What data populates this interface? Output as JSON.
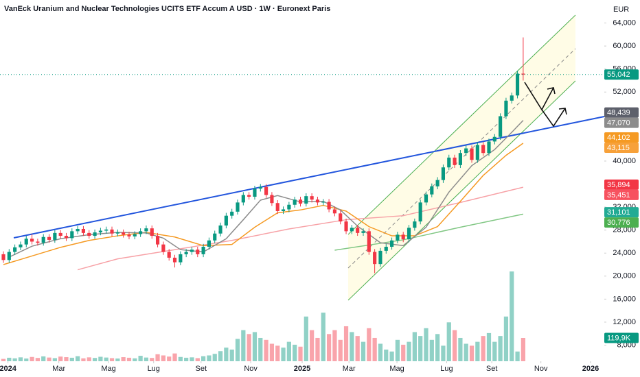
{
  "chart_data": {
    "type": "candlestick",
    "title": "VanEck Uranium and Nuclear Technologies UCITS ETF Accum A USD · 1W · Euronext Paris",
    "currency": "EUR",
    "up_color": "#089981",
    "down_color": "#f23645",
    "xlim": [
      -0.6,
      105.2
    ],
    "xticks": [
      {
        "value": 0.8,
        "label": "2024"
      },
      {
        "value": 9.7,
        "label": "Mar"
      },
      {
        "value": 18.4,
        "label": "Mag"
      },
      {
        "value": 26.3,
        "label": "Lug"
      },
      {
        "value": 34.6,
        "label": "Set"
      },
      {
        "value": 43.3,
        "label": "Nov"
      },
      {
        "value": 52.3,
        "label": "2025"
      },
      {
        "value": 60.5,
        "label": "Mar"
      },
      {
        "value": 68.9,
        "label": "Mag"
      },
      {
        "value": 77.6,
        "label": "Lug"
      },
      {
        "value": 85.5,
        "label": "Set"
      },
      {
        "value": 94.1,
        "label": "Nov"
      },
      {
        "value": 102.8,
        "label": "2026"
      }
    ],
    "ylim": [
      5200,
      68000
    ],
    "yticks": [
      {
        "value": 64000,
        "label": "64,000"
      },
      {
        "value": 60000,
        "label": "60,000"
      },
      {
        "value": 56000,
        "label": "56,000"
      },
      {
        "value": 52000,
        "label": "52,000"
      },
      {
        "value": 40000,
        "label": "40,000"
      },
      {
        "value": 32000,
        "label": "32,000"
      },
      {
        "value": 28000,
        "label": "28,000"
      },
      {
        "value": 24000,
        "label": "24,000"
      },
      {
        "value": 20000,
        "label": "20,000"
      },
      {
        "value": 16000,
        "label": "16,000"
      },
      {
        "value": 12000,
        "label": "12,000"
      },
      {
        "value": 8000,
        "label": "8,000"
      }
    ],
    "open": [
      23800,
      22800,
      24200,
      25000,
      25500,
      26500,
      26000,
      25800,
      26800,
      26300,
      27500,
      27000,
      26600,
      27800,
      28200,
      27500,
      27000,
      27600,
      27900,
      28100,
      27400,
      27600,
      27200,
      26900,
      27300,
      27800,
      28300,
      27000,
      25500,
      24200,
      23200,
      22400,
      23800,
      24200,
      24600,
      23800,
      25100,
      26200,
      27400,
      28800,
      30500,
      31200,
      32800,
      34100,
      33800,
      35200,
      35500,
      34100,
      32700,
      31300,
      31600,
      32400,
      33300,
      32600,
      33900,
      33300,
      32800,
      32900,
      31600,
      30900,
      29500,
      27800,
      28400,
      27500,
      27800,
      24200,
      22100,
      24400,
      25100,
      26200,
      27200,
      26400,
      28400,
      29500,
      32800,
      34200,
      35600,
      36700,
      38900,
      40600,
      39300,
      41400,
      42200,
      40200,
      42800,
      41400,
      43400,
      44200,
      47800,
      50500,
      51400,
      55200
    ],
    "high": [
      24300,
      24700,
      25500,
      26000,
      27000,
      27300,
      26500,
      27300,
      27300,
      28000,
      28000,
      27500,
      28300,
      28700,
      28700,
      28000,
      28100,
      28400,
      28600,
      28600,
      28100,
      28100,
      27700,
      27800,
      28300,
      28800,
      28800,
      27500,
      26000,
      24700,
      23700,
      24300,
      24700,
      25100,
      25100,
      25600,
      26700,
      27900,
      29300,
      31000,
      31700,
      33300,
      34600,
      34600,
      35700,
      36000,
      36000,
      34600,
      33200,
      32100,
      32900,
      33800,
      33800,
      34400,
      34400,
      33800,
      33400,
      33400,
      32100,
      31400,
      30000,
      28900,
      28900,
      28300,
      28300,
      24700,
      24900,
      25600,
      26700,
      27700,
      27700,
      28900,
      30000,
      33300,
      34700,
      36100,
      37200,
      39400,
      41100,
      41100,
      41900,
      42700,
      42700,
      43300,
      43300,
      43900,
      44700,
      48300,
      51000,
      51900,
      55700,
      61500
    ],
    "low": [
      22300,
      22300,
      23700,
      24500,
      25000,
      25500,
      25300,
      25300,
      25800,
      25800,
      26500,
      26100,
      26100,
      27300,
      27000,
      26500,
      26500,
      27100,
      27400,
      26900,
      26900,
      26700,
      26400,
      26400,
      26800,
      27300,
      26500,
      25000,
      23700,
      22700,
      21500,
      21900,
      23300,
      23700,
      23300,
      23300,
      24600,
      25700,
      26900,
      28300,
      30000,
      30700,
      32300,
      33300,
      33300,
      34700,
      33600,
      32200,
      30800,
      30800,
      31100,
      31900,
      32100,
      32100,
      32800,
      32300,
      32300,
      31100,
      30400,
      29000,
      27300,
      27300,
      27000,
      27000,
      23700,
      20500,
      21600,
      23900,
      24600,
      25700,
      25900,
      25900,
      27900,
      29000,
      32300,
      33700,
      35100,
      36200,
      38400,
      38800,
      38800,
      40900,
      39700,
      39700,
      40900,
      40900,
      42900,
      43700,
      47300,
      50000,
      50900,
      54000
    ],
    "close": [
      22800,
      24200,
      25000,
      25500,
      26500,
      26000,
      25800,
      26800,
      26300,
      27500,
      27000,
      26600,
      27800,
      28200,
      27500,
      27000,
      27600,
      27900,
      28100,
      27400,
      27600,
      27200,
      26900,
      27300,
      27800,
      28300,
      27000,
      25500,
      24200,
      23200,
      22400,
      23800,
      24200,
      24600,
      23800,
      25100,
      26200,
      27400,
      28800,
      30500,
      31200,
      32800,
      34100,
      33800,
      35200,
      35500,
      34100,
      32700,
      31300,
      31600,
      32400,
      33300,
      32600,
      33900,
      33300,
      32800,
      32900,
      31600,
      30900,
      29500,
      27800,
      28400,
      27500,
      27800,
      24200,
      22100,
      24400,
      25100,
      26200,
      27200,
      26400,
      28400,
      29500,
      32800,
      34200,
      35600,
      36700,
      38900,
      40600,
      39300,
      41400,
      42200,
      40200,
      42800,
      41400,
      43400,
      44200,
      47800,
      50500,
      51400,
      55200,
      55042
    ],
    "volume": {
      "values": [
        12000,
        18000,
        15000,
        20000,
        14000,
        22000,
        17000,
        25000,
        19000,
        16000,
        24000,
        21000,
        18000,
        26000,
        15000,
        20000,
        17000,
        23000,
        19000,
        16000,
        14000,
        21000,
        18000,
        15000,
        28000,
        19000,
        17000,
        36000,
        30000,
        24000,
        40000,
        22000,
        18000,
        20000,
        16000,
        26000,
        30000,
        38000,
        52000,
        70000,
        60000,
        115000,
        160000,
        140000,
        150000,
        120000,
        110000,
        90000,
        80000,
        70000,
        100000,
        85000,
        75000,
        230000,
        160000,
        120000,
        250000,
        140000,
        160000,
        110000,
        180000,
        150000,
        130000,
        100000,
        170000,
        120000,
        90000,
        60000,
        50000,
        110000,
        85000,
        100000,
        150000,
        130000,
        170000,
        110000,
        140000,
        80000,
        200000,
        160000,
        120000,
        90000,
        80000,
        100000,
        130000,
        145000,
        100000,
        130000,
        230000,
        462000,
        50000,
        119900
      ]
    },
    "volume_label": {
      "value": 119900,
      "label": "119,9K"
    },
    "overlays": [
      {
        "type": "line",
        "color": "#f7a1a6",
        "x": [
          13,
          20,
          30,
          40,
          50,
          60,
          70,
          80,
          91
        ],
        "values": [
          21100,
          23000,
          24600,
          26200,
          28200,
          29800,
          30500,
          32800,
          35451
        ]
      },
      {
        "type": "line",
        "color": "#81c784",
        "x": [
          58,
          70,
          80,
          91
        ],
        "values": [
          24500,
          26300,
          28500,
          30776
        ]
      },
      {
        "type": "line",
        "color": "#f59a23",
        "x": [
          0,
          5,
          10,
          15,
          20,
          25,
          30,
          35,
          40,
          44,
          48,
          52,
          56,
          60,
          64,
          68,
          72,
          76,
          80,
          84,
          88,
          91
        ],
        "values": [
          22000,
          23500,
          25000,
          26200,
          27000,
          27600,
          26800,
          25300,
          25500,
          28500,
          31000,
          31500,
          32300,
          31300,
          28600,
          27000,
          27000,
          28600,
          33000,
          37500,
          41000,
          43115
        ]
      },
      {
        "type": "line",
        "color": "#8c8c8c",
        "x": [
          1,
          5,
          10,
          15,
          20,
          25,
          28,
          31,
          35,
          39,
          42,
          45,
          48,
          52,
          56,
          59,
          62,
          66,
          70,
          74,
          78,
          82,
          86,
          89,
          91
        ],
        "values": [
          23300,
          25200,
          26500,
          27200,
          27600,
          27500,
          26600,
          24600,
          24200,
          26500,
          29800,
          33200,
          34000,
          32900,
          33000,
          31500,
          28700,
          25800,
          25300,
          28500,
          34600,
          39200,
          42000,
          45000,
          47070
        ]
      }
    ],
    "last_price": {
      "value": 55042,
      "label": "55,042",
      "color": "#089981"
    },
    "price_labels": [
      {
        "value": 48439,
        "label": "48,439",
        "color": "#5d606b"
      },
      {
        "value": 47070,
        "label": "47,070",
        "color": "#8c8c8c"
      },
      {
        "value": 44102,
        "label": "44,102",
        "color": "#f59a23"
      },
      {
        "value": 43115,
        "label": "43,115",
        "color": "#f7a13a"
      },
      {
        "value": 35894,
        "label": "35,894",
        "color": "#f23645"
      },
      {
        "value": 35451,
        "label": "35,451",
        "color": "#f7525f"
      },
      {
        "value": 31101,
        "label": "31,101",
        "color": "#22ab94"
      },
      {
        "value": 30776,
        "label": "30,776",
        "color": "#4caf50"
      }
    ]
  }
}
